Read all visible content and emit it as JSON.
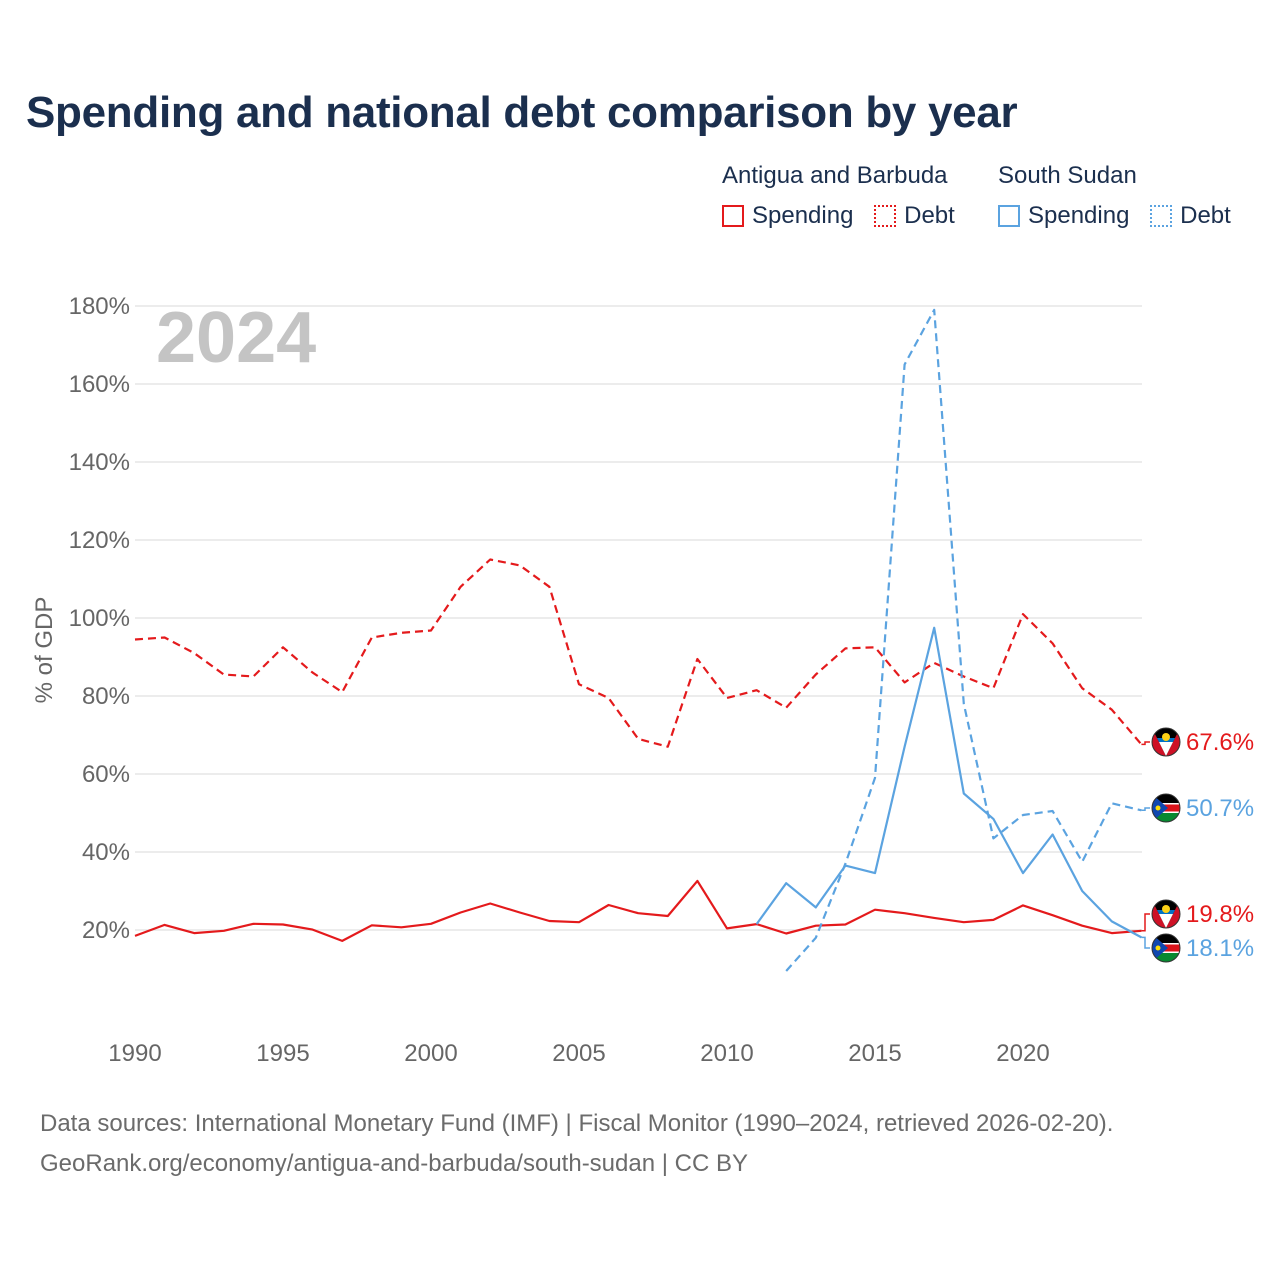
{
  "title": "Spending and national debt comparison by year",
  "legend": {
    "country_a": "Antigua and Barbuda",
    "country_b": "South Sudan",
    "spending_label": "Spending",
    "debt_label": "Debt"
  },
  "colors": {
    "antigua": "#e41a1c",
    "south_sudan": "#5ba3e0"
  },
  "source": {
    "line1": "Data sources: International Monetary Fund (IMF) | Fiscal Monitor (1990–2024, retrieved 2026-02-20).",
    "line2": "GeoRank.org/economy/antigua-and-barbuda/south-sudan | CC BY"
  },
  "chart_data": {
    "type": "line",
    "title": "Spending and national debt comparison by year",
    "year_label": "2024",
    "xlabel": "",
    "ylabel": "% of GDP",
    "xlim": [
      1990,
      2024
    ],
    "ylim": [
      0,
      180
    ],
    "x_ticks": [
      "1990",
      "1995",
      "2000",
      "2005",
      "2010",
      "2015",
      "2020"
    ],
    "y_ticks": [
      "20%",
      "40%",
      "60%",
      "80%",
      "100%",
      "120%",
      "140%",
      "160%",
      "180%"
    ],
    "grid": true,
    "x": [
      1990,
      1991,
      1992,
      1993,
      1994,
      1995,
      1996,
      1997,
      1998,
      1999,
      2000,
      2001,
      2002,
      2003,
      2004,
      2005,
      2006,
      2007,
      2008,
      2009,
      2010,
      2011,
      2012,
      2013,
      2014,
      2015,
      2016,
      2017,
      2018,
      2019,
      2020,
      2021,
      2022,
      2023,
      2024
    ],
    "series": [
      {
        "name": "Antigua and Barbuda Debt",
        "country": "antigua",
        "style": "dashed",
        "values": [
          94.5,
          95,
          91,
          85.5,
          85,
          92.5,
          86,
          81,
          95,
          96.2,
          96.8,
          108,
          115,
          113.5,
          108,
          83,
          79.5,
          69,
          67,
          89.5,
          79.5,
          81.5,
          77,
          85.5,
          92.2,
          92.5,
          83.5,
          88.5,
          85,
          82,
          101,
          93.5,
          82,
          76.5,
          67.6
        ]
      },
      {
        "name": "Antigua and Barbuda Spending",
        "country": "antigua",
        "style": "solid",
        "values": [
          18.5,
          21.3,
          19.2,
          19.8,
          21.6,
          21.4,
          20.1,
          17.2,
          21.2,
          20.7,
          21.6,
          24.5,
          26.8,
          24.5,
          22.3,
          22,
          26.4,
          24.3,
          23.6,
          32.6,
          20.4,
          21.5,
          19.1,
          21.1,
          21.4,
          25.2,
          24.3,
          23.1,
          22,
          22.6,
          26.3,
          23.8,
          21.1,
          19.2,
          19.8
        ]
      },
      {
        "name": "South Sudan Debt",
        "country": "south_sudan",
        "style": "dashed",
        "values": [
          null,
          null,
          null,
          null,
          null,
          null,
          null,
          null,
          null,
          null,
          null,
          null,
          null,
          null,
          null,
          null,
          null,
          null,
          null,
          null,
          null,
          null,
          9.5,
          18,
          37,
          59,
          165,
          179,
          78,
          43.5,
          49.5,
          50.5,
          37.5,
          52.5,
          50.7
        ]
      },
      {
        "name": "South Sudan Spending",
        "country": "south_sudan",
        "style": "solid",
        "values": [
          null,
          null,
          null,
          null,
          null,
          null,
          null,
          null,
          null,
          null,
          null,
          null,
          null,
          null,
          null,
          null,
          null,
          null,
          null,
          null,
          null,
          21.5,
          32,
          25.8,
          36.5,
          34.6,
          67,
          97.5,
          55,
          48.5,
          34.6,
          44.5,
          30,
          22.2,
          18.1
        ]
      }
    ],
    "end_labels": [
      {
        "text": "67.6%",
        "country": "antigua"
      },
      {
        "text": "50.7%",
        "country": "south_sudan"
      },
      {
        "text": "19.8%",
        "country": "antigua"
      },
      {
        "text": "18.1%",
        "country": "south_sudan"
      }
    ]
  }
}
